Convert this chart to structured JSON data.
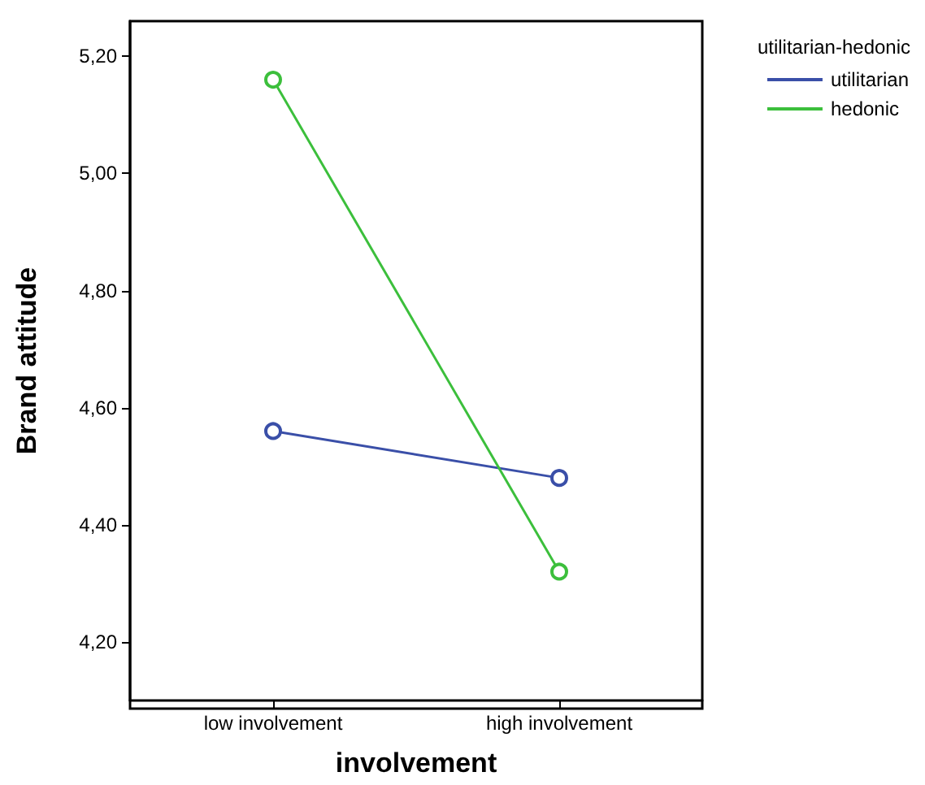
{
  "chart_data": {
    "type": "line",
    "xlabel": "involvement",
    "ylabel": "Brand attitude",
    "legend_title": "utilitarian-hedonic",
    "categories": [
      "low involvement",
      "high involvement"
    ],
    "series": [
      {
        "name": "utilitarian",
        "color": "#3a4fa8",
        "values": [
          4.56,
          4.48
        ]
      },
      {
        "name": "hedonic",
        "color": "#3cbf3c",
        "values": [
          5.16,
          4.32
        ]
      }
    ],
    "ylim": [
      4.1,
      5.26
    ],
    "yticks": [
      {
        "value": 4.2,
        "label": "4,20"
      },
      {
        "value": 4.4,
        "label": "4,40"
      },
      {
        "value": 4.6,
        "label": "4,60"
      },
      {
        "value": 4.8,
        "label": "4,80"
      },
      {
        "value": 5.0,
        "label": "5,00"
      },
      {
        "value": 5.2,
        "label": "5,20"
      }
    ],
    "grid": false,
    "legend": "top right",
    "marker": "circle",
    "line_style": "solid"
  }
}
